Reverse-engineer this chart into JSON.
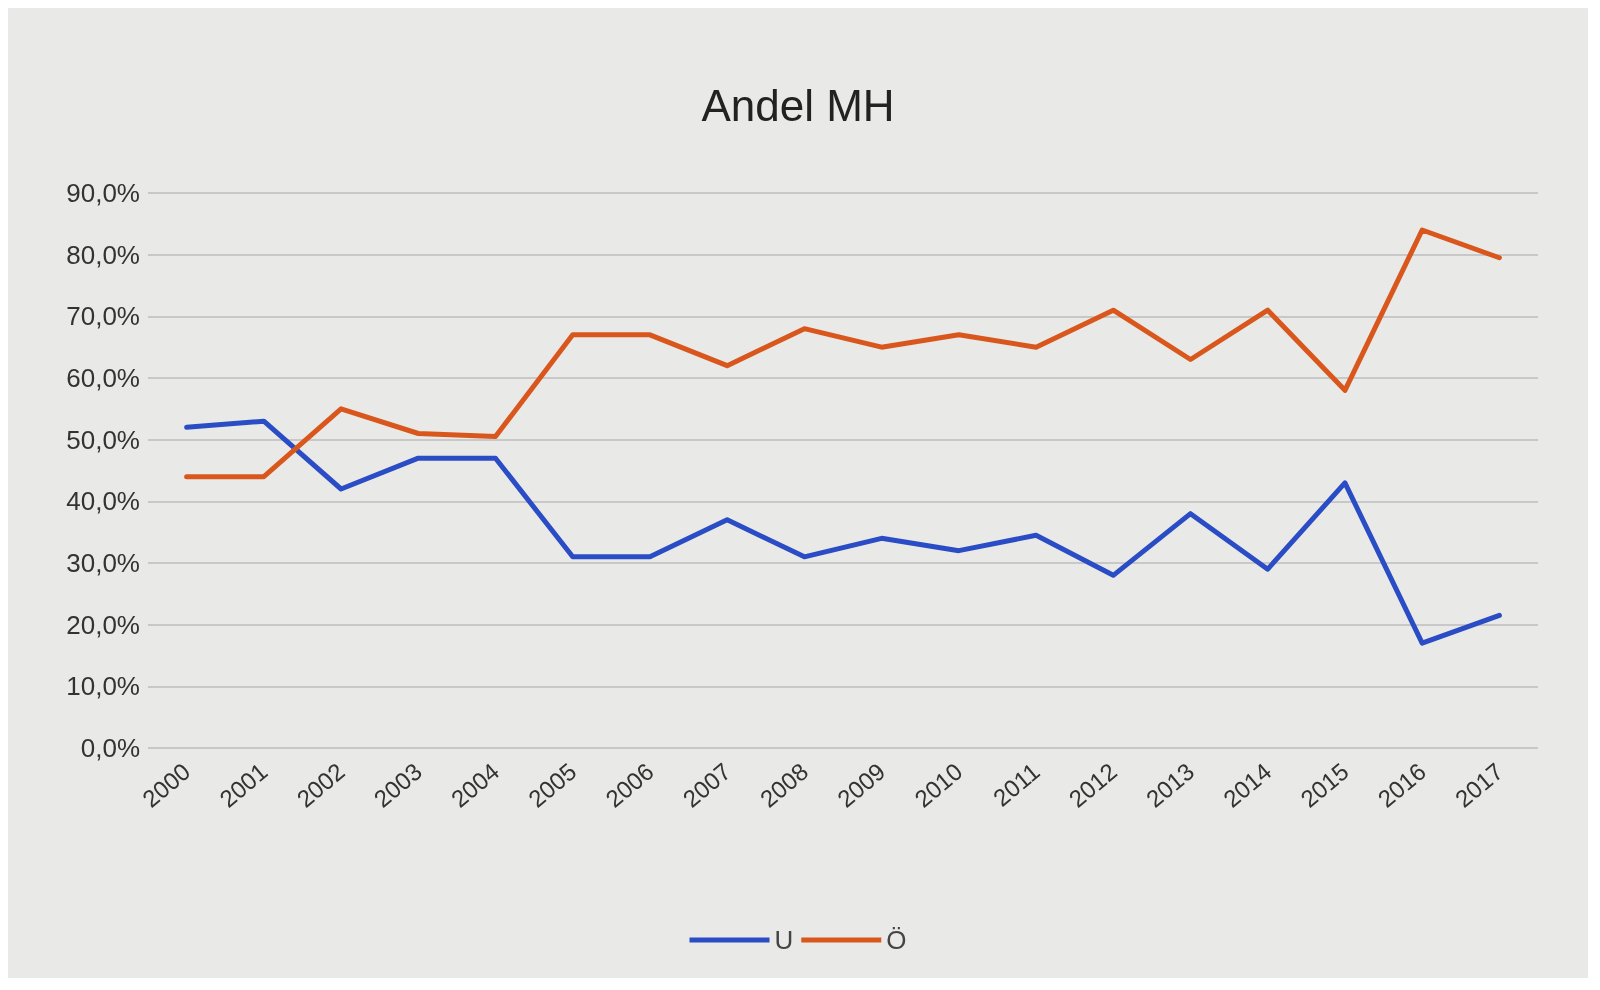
{
  "chart_data": {
    "type": "line",
    "title": "Andel MH",
    "categories": [
      "2000",
      "2001",
      "2002",
      "2003",
      "2004",
      "2005",
      "2006",
      "2007",
      "2008",
      "2009",
      "2010",
      "2011",
      "2012",
      "2013",
      "2014",
      "2015",
      "2016",
      "2017"
    ],
    "series": [
      {
        "name": "U",
        "color": "#2a4cc4",
        "values": [
          52,
          53,
          42,
          47,
          47,
          31,
          31,
          37,
          31,
          34,
          32,
          34.5,
          28,
          38,
          29,
          43,
          17,
          21.5
        ]
      },
      {
        "name": "Ö",
        "color": "#d9571c",
        "values": [
          44,
          44,
          55,
          51,
          50.5,
          67,
          67,
          62,
          68,
          65,
          67,
          65,
          71,
          63,
          71,
          58,
          84,
          79.5
        ]
      }
    ],
    "ylim": [
      0,
      90
    ],
    "yticks": [
      {
        "value": 0,
        "label": "0,0%"
      },
      {
        "value": 10,
        "label": "10,0%"
      },
      {
        "value": 20,
        "label": "20,0%"
      },
      {
        "value": 30,
        "label": "30,0%"
      },
      {
        "value": 40,
        "label": "40,0%"
      },
      {
        "value": 50,
        "label": "50,0%"
      },
      {
        "value": 60,
        "label": "60,0%"
      },
      {
        "value": 70,
        "label": "70,0%"
      },
      {
        "value": 80,
        "label": "80,0%"
      },
      {
        "value": 90,
        "label": "90,0%"
      }
    ],
    "grid": "y",
    "legend": "bottom",
    "marker": "none",
    "line_style": "solid"
  }
}
